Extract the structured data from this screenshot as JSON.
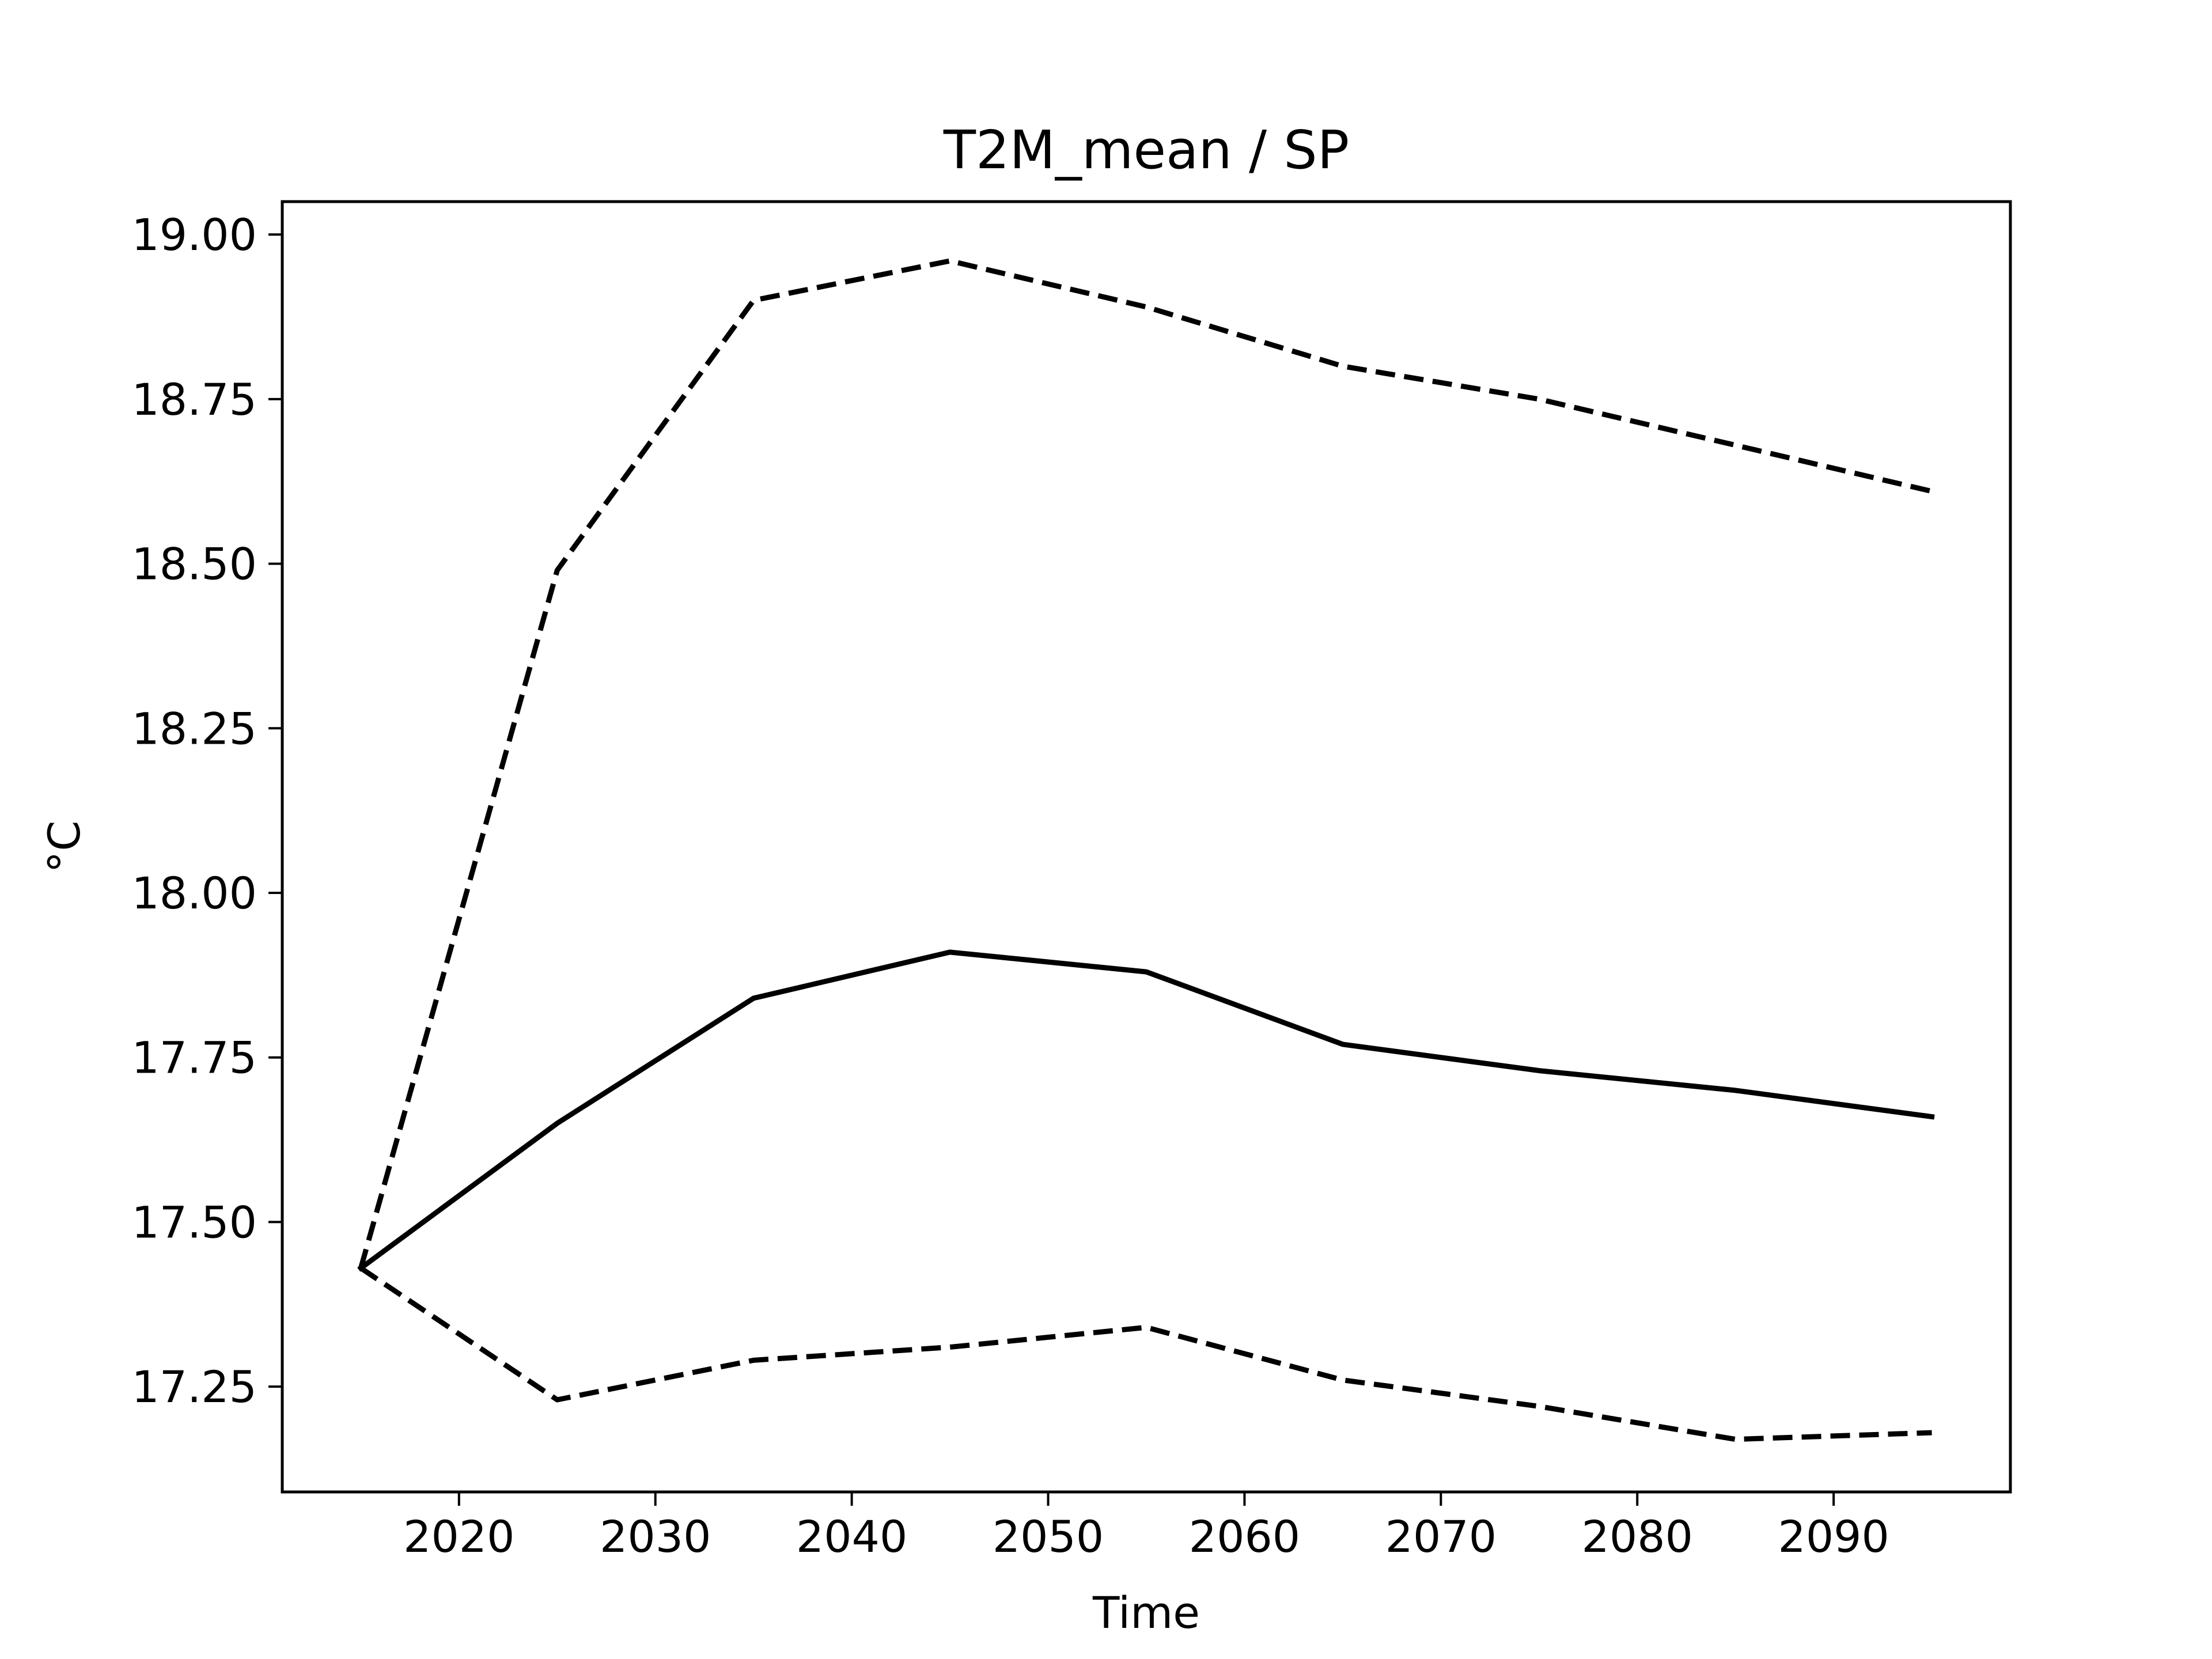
{
  "chart_data": {
    "type": "line",
    "title": "T2M_mean / SP",
    "xlabel": "Time",
    "ylabel": "°C",
    "xlim": [
      2011,
      2099
    ],
    "ylim": [
      17.09,
      19.05
    ],
    "x_ticks": [
      2020,
      2030,
      2040,
      2050,
      2060,
      2070,
      2080,
      2090
    ],
    "y_ticks": [
      17.25,
      17.5,
      17.75,
      18.0,
      18.25,
      18.5,
      18.75,
      19.0
    ],
    "y_tick_labels": [
      "17.25",
      "17.50",
      "17.75",
      "18.00",
      "18.25",
      "18.50",
      "18.75",
      "19.00"
    ],
    "grid": false,
    "legend": "none",
    "x": [
      2015,
      2025,
      2035,
      2045,
      2055,
      2065,
      2075,
      2085,
      2095
    ],
    "series": [
      {
        "style": "dashed",
        "color": "#000000",
        "values": [
          17.43,
          18.49,
          18.9,
          18.96,
          18.89,
          18.8,
          18.75,
          18.68,
          18.61
        ]
      },
      {
        "style": "solid",
        "color": "#000000",
        "values": [
          17.43,
          17.65,
          17.84,
          17.91,
          17.88,
          17.77,
          17.73,
          17.7,
          17.66
        ]
      },
      {
        "style": "dashed",
        "color": "#000000",
        "values": [
          17.43,
          17.23,
          17.29,
          17.31,
          17.34,
          17.26,
          17.22,
          17.17,
          17.18
        ]
      }
    ]
  }
}
